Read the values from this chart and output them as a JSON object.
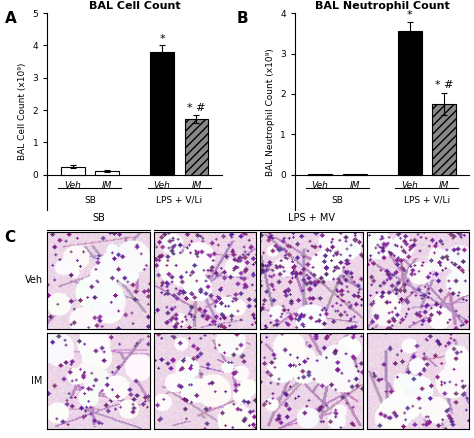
{
  "panel_A": {
    "title": "BAL Cell Count",
    "ylabel": "BAL Cell Count (x10⁹)",
    "bars": [
      {
        "label": "Veh",
        "group": "SB",
        "value": 0.25,
        "error": 0.05,
        "color": "#ffffff",
        "hatch": null,
        "edge": "black"
      },
      {
        "label": "IM",
        "group": "SB",
        "value": 0.12,
        "error": 0.03,
        "color": "#ffffff",
        "hatch": null,
        "edge": "black"
      },
      {
        "label": "Veh",
        "group": "LPS+V/Li",
        "value": 3.8,
        "error": 0.2,
        "color": "#000000",
        "hatch": null,
        "edge": "black"
      },
      {
        "label": "IM",
        "group": "LPS+V/Li",
        "value": 1.72,
        "error": 0.13,
        "color": "#888888",
        "hatch": "////",
        "edge": "black"
      }
    ],
    "ylim": [
      0,
      5
    ],
    "yticks": [
      0,
      1,
      2,
      3,
      4,
      5
    ],
    "star_annotations": [
      {
        "bar_idx": 2,
        "text": "*",
        "y": 4.05
      },
      {
        "bar_idx": 3,
        "text": "* #",
        "y": 1.92
      }
    ],
    "group_labels": [
      {
        "text": "SB",
        "bars": [
          0,
          1
        ]
      },
      {
        "text": "LPS + V/Li",
        "bars": [
          2,
          3
        ]
      }
    ]
  },
  "panel_B": {
    "title": "BAL Neutrophil Count",
    "ylabel": "BAL Neutrophil Count (x10⁹)",
    "bars": [
      {
        "label": "Veh",
        "group": "SB",
        "value": 0.02,
        "error": 0.0,
        "color": "#ffffff",
        "hatch": null,
        "edge": "black"
      },
      {
        "label": "IM",
        "group": "SB",
        "value": 0.02,
        "error": 0.0,
        "color": "#ffffff",
        "hatch": null,
        "edge": "black"
      },
      {
        "label": "Veh",
        "group": "LPS+V/Li",
        "value": 3.55,
        "error": 0.22,
        "color": "#000000",
        "hatch": null,
        "edge": "black"
      },
      {
        "label": "IM",
        "group": "LPS+V/Li",
        "value": 1.75,
        "error": 0.28,
        "color": "#888888",
        "hatch": "////",
        "edge": "black"
      }
    ],
    "ylim": [
      0,
      4
    ],
    "yticks": [
      0,
      1,
      2,
      3,
      4
    ],
    "star_annotations": [
      {
        "bar_idx": 2,
        "text": "*",
        "y": 3.82
      },
      {
        "bar_idx": 3,
        "text": "* #",
        "y": 2.1
      }
    ],
    "group_labels": [
      {
        "text": "SB",
        "bars": [
          0,
          1
        ]
      },
      {
        "text": "LPS + V/Li",
        "bars": [
          2,
          3
        ]
      }
    ]
  },
  "bar_width": 0.52,
  "bar_positions": [
    0.7,
    1.45,
    2.65,
    3.4
  ],
  "background_color": "#ffffff",
  "label_fontsize": 6.5,
  "title_fontsize": 8,
  "tick_fontsize": 6.5,
  "annotation_fontsize": 8,
  "panel_C": {
    "row_labels": [
      "Veh",
      "IM"
    ],
    "sb_label": "SB",
    "lps_label": "LPS + MV",
    "n_rows": 2,
    "n_cols": 4
  }
}
